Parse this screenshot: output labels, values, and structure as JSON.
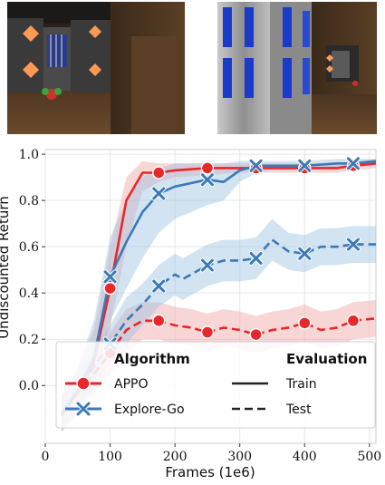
{
  "screenshots": [
    {
      "scene": "doom-corridor-brown-wall-orange-diamond-lights"
    },
    {
      "scene": "doom-corridor-grey-metal-blue-windows"
    }
  ],
  "colors": {
    "appo": "#e8272a",
    "explore_go": "#3b79b8",
    "appo_band": "#f2a3a5",
    "explore_go_band": "#9cc3e3",
    "grid": "#e6e6e6"
  },
  "chart_data": {
    "type": "line",
    "xlabel": "Frames (1e6)",
    "ylabel": "Undiscounted Return",
    "xlim": [
      0,
      510
    ],
    "ylim": [
      -0.25,
      1.02
    ],
    "xticks": [
      0,
      100,
      200,
      300,
      400,
      500
    ],
    "yticks": [
      0.0,
      0.2,
      0.4,
      0.6,
      0.8,
      1.0
    ],
    "ytick_labels": [
      "0.0",
      "0.2",
      "0.4",
      "0.6",
      "0.8",
      "1.0"
    ],
    "grid": true,
    "legend": {
      "placement": "bottom-left",
      "algorithm_title": "Algorithm",
      "evaluation_title": "Evaluation",
      "algorithm_entries": [
        "APPO",
        "Explore-Go"
      ],
      "evaluation_entries": [
        "Train",
        "Test"
      ]
    },
    "series": [
      {
        "name": "APPO",
        "mode": "Train",
        "color_key": "appo",
        "marker": "circle",
        "x": [
          25,
          50,
          75,
          100,
          125,
          150,
          175,
          200,
          250,
          300,
          325,
          350,
          400,
          450,
          475,
          510
        ],
        "y": [
          -0.13,
          -0.03,
          0.1,
          0.42,
          0.8,
          0.92,
          0.92,
          0.93,
          0.94,
          0.94,
          0.94,
          0.94,
          0.94,
          0.94,
          0.95,
          0.96
        ],
        "lo": [
          -0.2,
          -0.12,
          0.0,
          0.25,
          0.6,
          0.84,
          0.88,
          0.9,
          0.91,
          0.92,
          0.92,
          0.92,
          0.92,
          0.92,
          0.93,
          0.94
        ],
        "hi": [
          -0.05,
          0.07,
          0.24,
          0.6,
          0.9,
          0.97,
          0.96,
          0.96,
          0.96,
          0.96,
          0.96,
          0.96,
          0.96,
          0.96,
          0.97,
          0.98
        ],
        "marker_x": [
          100,
          175,
          250,
          325,
          400,
          475
        ]
      },
      {
        "name": "Explore-Go",
        "mode": "Train",
        "color_key": "explore_go",
        "marker": "x",
        "x": [
          25,
          50,
          75,
          100,
          125,
          150,
          175,
          200,
          250,
          275,
          300,
          325,
          350,
          400,
          450,
          475,
          510
        ],
        "y": [
          -0.12,
          -0.02,
          0.12,
          0.47,
          0.62,
          0.75,
          0.83,
          0.86,
          0.89,
          0.88,
          0.93,
          0.95,
          0.95,
          0.95,
          0.96,
          0.96,
          0.97
        ],
        "lo": [
          -0.2,
          -0.12,
          -0.02,
          0.28,
          0.42,
          0.55,
          0.66,
          0.72,
          0.78,
          0.8,
          0.88,
          0.92,
          0.93,
          0.93,
          0.94,
          0.94,
          0.95
        ],
        "hi": [
          -0.04,
          0.08,
          0.28,
          0.64,
          0.8,
          0.9,
          0.94,
          0.96,
          0.96,
          0.96,
          0.97,
          0.97,
          0.97,
          0.97,
          0.98,
          0.98,
          0.98
        ],
        "marker_x": [
          100,
          175,
          250,
          325,
          400,
          475
        ]
      },
      {
        "name": "APPO",
        "mode": "Test",
        "color_key": "appo",
        "marker": "circle",
        "x": [
          25,
          50,
          75,
          100,
          125,
          150,
          175,
          200,
          225,
          250,
          275,
          300,
          325,
          350,
          375,
          400,
          425,
          450,
          475,
          510
        ],
        "y": [
          -0.12,
          -0.03,
          0.05,
          0.14,
          0.24,
          0.28,
          0.28,
          0.26,
          0.25,
          0.23,
          0.25,
          0.24,
          0.22,
          0.24,
          0.25,
          0.27,
          0.24,
          0.25,
          0.28,
          0.29
        ],
        "lo": [
          -0.19,
          -0.1,
          -0.03,
          0.05,
          0.15,
          0.2,
          0.2,
          0.18,
          0.17,
          0.15,
          0.17,
          0.16,
          0.14,
          0.16,
          0.17,
          0.19,
          0.16,
          0.17,
          0.2,
          0.21
        ],
        "hi": [
          -0.05,
          0.04,
          0.13,
          0.23,
          0.33,
          0.36,
          0.36,
          0.34,
          0.33,
          0.31,
          0.33,
          0.32,
          0.3,
          0.32,
          0.33,
          0.35,
          0.32,
          0.33,
          0.36,
          0.37
        ],
        "marker_x": [
          100,
          175,
          250,
          325,
          400,
          475
        ]
      },
      {
        "name": "Explore-Go",
        "mode": "Test",
        "color_key": "explore_go",
        "marker": "x",
        "x": [
          25,
          50,
          75,
          100,
          125,
          150,
          175,
          200,
          212,
          225,
          250,
          275,
          300,
          325,
          350,
          375,
          400,
          425,
          450,
          475,
          510
        ],
        "y": [
          -0.12,
          -0.02,
          0.08,
          0.18,
          0.28,
          0.35,
          0.43,
          0.48,
          0.46,
          0.48,
          0.52,
          0.54,
          0.54,
          0.55,
          0.63,
          0.58,
          0.57,
          0.6,
          0.6,
          0.61,
          0.61
        ],
        "lo": [
          -0.19,
          -0.09,
          0.0,
          0.1,
          0.18,
          0.26,
          0.34,
          0.39,
          0.37,
          0.39,
          0.43,
          0.45,
          0.45,
          0.46,
          0.54,
          0.5,
          0.49,
          0.52,
          0.52,
          0.53,
          0.53
        ],
        "hi": [
          -0.05,
          0.05,
          0.16,
          0.26,
          0.38,
          0.44,
          0.52,
          0.57,
          0.55,
          0.57,
          0.61,
          0.63,
          0.63,
          0.64,
          0.72,
          0.66,
          0.65,
          0.68,
          0.68,
          0.69,
          0.69
        ],
        "marker_x": [
          100,
          175,
          250,
          325,
          400,
          475
        ]
      }
    ]
  }
}
